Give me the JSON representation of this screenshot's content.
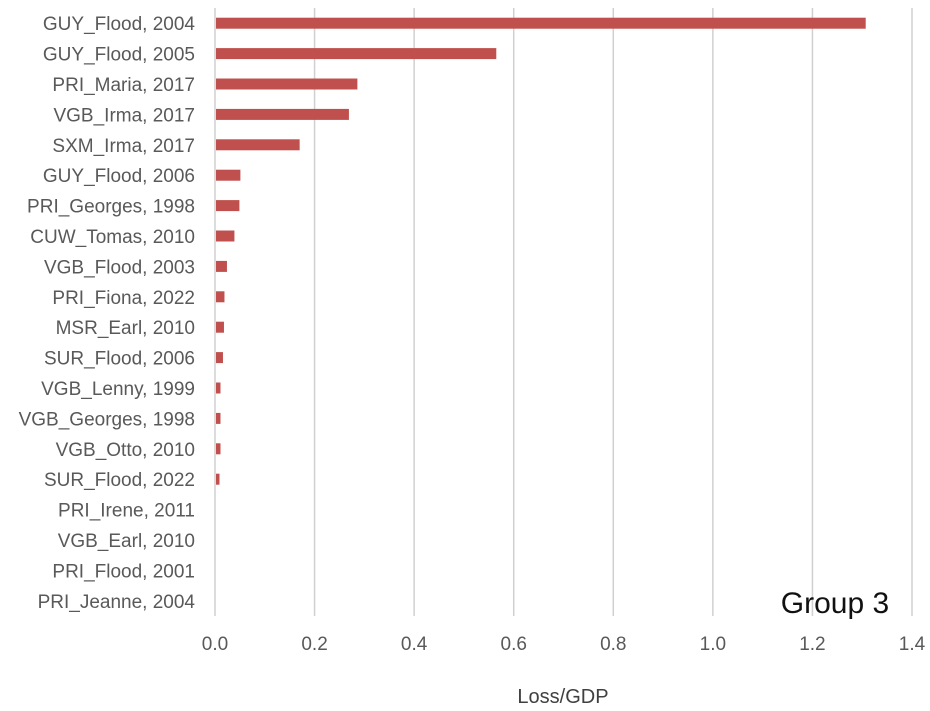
{
  "chart_data": {
    "type": "bar",
    "orientation": "horizontal",
    "categories": [
      "GUY_Flood, 2004",
      "GUY_Flood, 2005",
      "PRI_Maria, 2017",
      "VGB_Irma, 2017",
      "SXM_Irma, 2017",
      "GUY_Flood, 2006",
      "PRI_Georges, 1998",
      "CUW_Tomas, 2010",
      "VGB_Flood, 2003",
      "PRI_Fiona, 2022",
      "MSR_Earl, 2010",
      "SUR_Flood, 2006",
      "VGB_Lenny, 1999",
      "VGB_Georges, 1998",
      "VGB_Otto, 2010",
      "SUR_Flood, 2022",
      "PRI_Irene, 2011",
      "VGB_Earl, 2010",
      "PRI_Flood, 2001",
      "PRI_Jeanne, 2004"
    ],
    "values": [
      1.305,
      0.563,
      0.284,
      0.267,
      0.168,
      0.049,
      0.047,
      0.037,
      0.022,
      0.017,
      0.016,
      0.014,
      0.009,
      0.009,
      0.009,
      0.007,
      0.0,
      0.0,
      0.0,
      0.0
    ],
    "xlabel": "Loss/GDP",
    "ylabel": "",
    "xlim": [
      0,
      1.4
    ],
    "xticks": [
      "0.0",
      "0.2",
      "0.4",
      "0.6",
      "0.8",
      "1.0",
      "1.2",
      "1.4"
    ],
    "grid": "vertical",
    "bar_color": "#c0504d",
    "annotation": "Group 3"
  }
}
